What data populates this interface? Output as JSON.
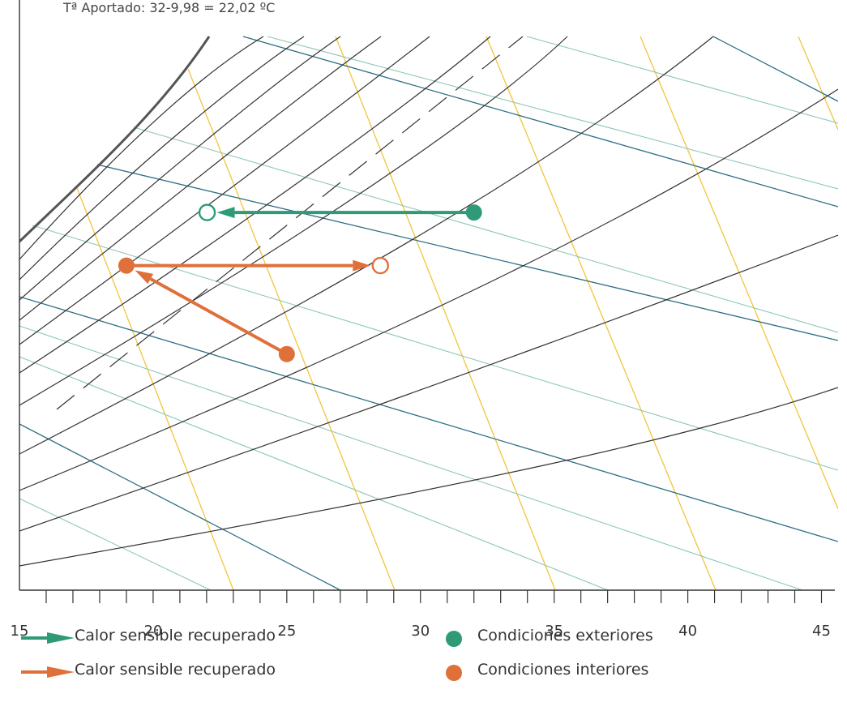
{
  "chart_data": {
    "type": "scatter",
    "title": "Tª Aportado: 32-9,98 = 22,02 ºC",
    "xlabel": "",
    "ylabel": "",
    "xlim": [
      15,
      45.5
    ],
    "x_ticks": [
      15,
      20,
      25,
      30,
      35,
      40,
      45
    ],
    "grid": false,
    "points": [
      {
        "name": "exterior",
        "x": 32,
        "y": 0.36,
        "filled": true,
        "color": "#2e9a77"
      },
      {
        "name": "exterior-supply",
        "x": 22.02,
        "y": 0.36,
        "filled": false,
        "color": "#2e9a77"
      },
      {
        "name": "interior-start",
        "x": 25,
        "y": 0.6,
        "filled": true,
        "color": "#e0703a"
      },
      {
        "name": "interior-mid",
        "x": 19,
        "y": 0.45,
        "filled": true,
        "color": "#e0703a"
      },
      {
        "name": "interior-end",
        "x": 28.5,
        "y": 0.45,
        "filled": false,
        "color": "#e0703a"
      }
    ],
    "arrows": [
      {
        "from": "exterior",
        "to": "exterior-supply",
        "color": "#2e9a77"
      },
      {
        "from": "interior-start",
        "to": "interior-mid",
        "color": "#e0703a"
      },
      {
        "from": "interior-mid",
        "to": "interior-end",
        "color": "#e0703a"
      }
    ],
    "legend": [
      {
        "marker": "arrow",
        "color": "#2e9a77",
        "label": "Calor sensible recuperado"
      },
      {
        "marker": "arrow",
        "color": "#e0703a",
        "label": "Calor sensible recuperado"
      },
      {
        "marker": "dot",
        "color": "#2e9a77",
        "label": "Condiciones exteriores"
      },
      {
        "marker": "dot",
        "color": "#e0703a",
        "label": "Condiciones interiores"
      }
    ],
    "legend_placement": "bottom"
  },
  "colors": {
    "exterior": "#2e9a77",
    "interior": "#e0703a",
    "rh_curves": "#333333",
    "saturation": "#555555",
    "enthalpy_dark": "#2d6f84",
    "enthalpy_light": "#8fc7b8",
    "wet_bulb": "#f2c53a"
  }
}
